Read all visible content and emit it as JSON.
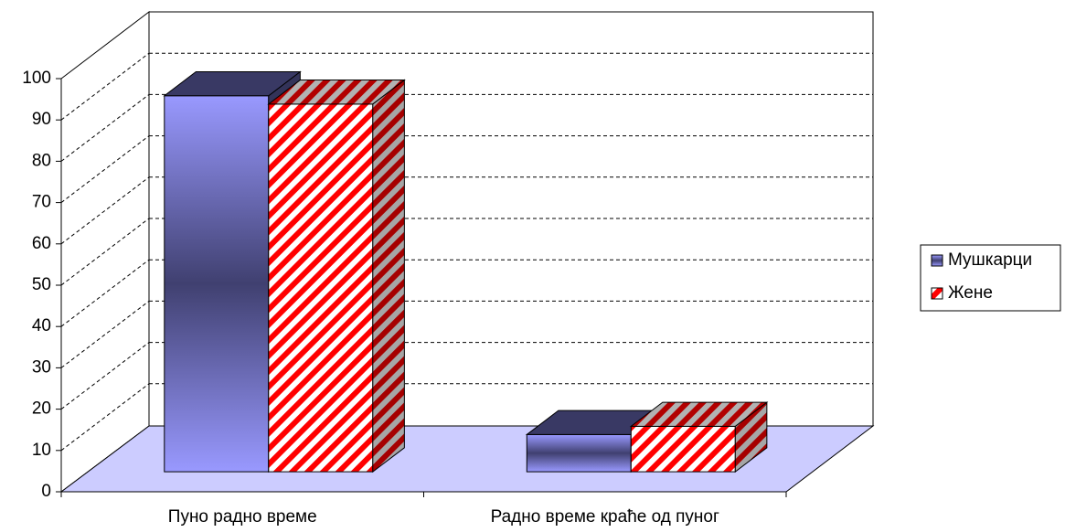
{
  "chart_data": {
    "type": "bar3d",
    "categories": [
      "Пуно радно време",
      "Радно време краће од пуног"
    ],
    "series": [
      {
        "name": "Мушкарци",
        "color": "#9999ff",
        "values": [
          91,
          9
        ]
      },
      {
        "name": "Жене",
        "color": "#ff0000",
        "values": [
          89,
          11
        ]
      }
    ],
    "ylim": [
      0,
      100
    ],
    "yticks": [
      0,
      10,
      20,
      30,
      40,
      50,
      60,
      70,
      80,
      90,
      100
    ],
    "grid": true,
    "legend": "right"
  }
}
